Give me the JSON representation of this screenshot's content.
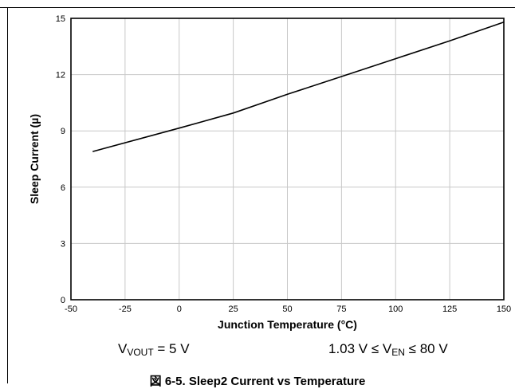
{
  "chart_data": {
    "type": "line",
    "xlabel": "Junction Temperature (°C)",
    "ylabel": "Sleep Current (µ)",
    "xlim": [
      -50,
      150
    ],
    "ylim": [
      0,
      15
    ],
    "xticks": [
      "-50",
      "-25",
      "0",
      "25",
      "50",
      "75",
      "100",
      "125",
      "150"
    ],
    "yticks": [
      "0",
      "3",
      "6",
      "9",
      "12",
      "15"
    ],
    "grid": true,
    "series": [
      {
        "x": [
          -40,
          0,
          25,
          50,
          75,
          100,
          125,
          150
        ],
        "y": [
          7.9,
          9.15,
          9.95,
          10.95,
          11.9,
          12.85,
          13.8,
          14.8
        ]
      }
    ]
  },
  "conditions": {
    "left": {
      "var": "V",
      "sub": "VOUT",
      "rest": " = 5 V"
    },
    "right": {
      "pre": "1.03 V ≤ V",
      "sub": "EN",
      "rest": " ≤ 80 V"
    }
  },
  "caption": "図 6-5. Sleep2 Current vs Temperature"
}
